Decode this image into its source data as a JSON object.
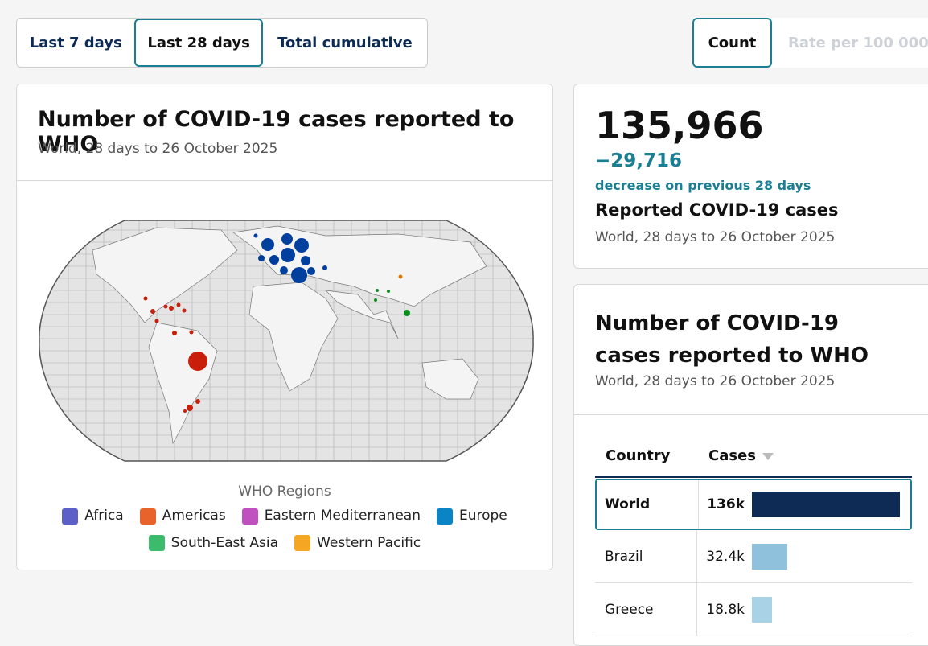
{
  "tabs": {
    "period": [
      "Last 7 days",
      "Last 28 days",
      "Total cumulative"
    ],
    "active_period": 1,
    "metric": [
      "Count",
      "Rate per 100 000"
    ],
    "active_metric": 0
  },
  "map_card": {
    "title": "Number of COVID-19 cases reported to WHO",
    "subtitle": "World, 28 days to 26 October 2025",
    "legend": {
      "title": "WHO Regions",
      "items": [
        {
          "name": "Africa",
          "color": "#5b5fc7"
        },
        {
          "name": "Americas",
          "color": "#e8632b"
        },
        {
          "name": "Eastern Mediterranean",
          "color": "#c050c0"
        },
        {
          "name": "Europe",
          "color": "#0b84c6"
        },
        {
          "name": "South-East Asia",
          "color": "#3dbb6c"
        },
        {
          "name": "Western Pacific",
          "color": "#f5a623"
        }
      ]
    }
  },
  "summary": {
    "total": "135,966",
    "change": "−29,716",
    "change_note": "decrease on previous 28 days",
    "label": "Reported COVID-19 cases",
    "subtitle": "World, 28 days to 26 October 2025"
  },
  "table_card": {
    "title": "Number of COVID-19 cases reported to WHO",
    "subtitle": "World, 28 days to 26 October 2025",
    "columns": [
      "Country",
      "Cases"
    ],
    "rows": [
      {
        "country": "World",
        "cases": 136000,
        "cases_label": "136k",
        "color": "#0d2b55"
      },
      {
        "country": "Brazil",
        "cases": 32400,
        "cases_label": "32.4k",
        "color": "#8fc1dc"
      },
      {
        "country": "Greece",
        "cases": 18800,
        "cases_label": "18.8k",
        "color": "#a9d2e6"
      }
    ]
  }
}
